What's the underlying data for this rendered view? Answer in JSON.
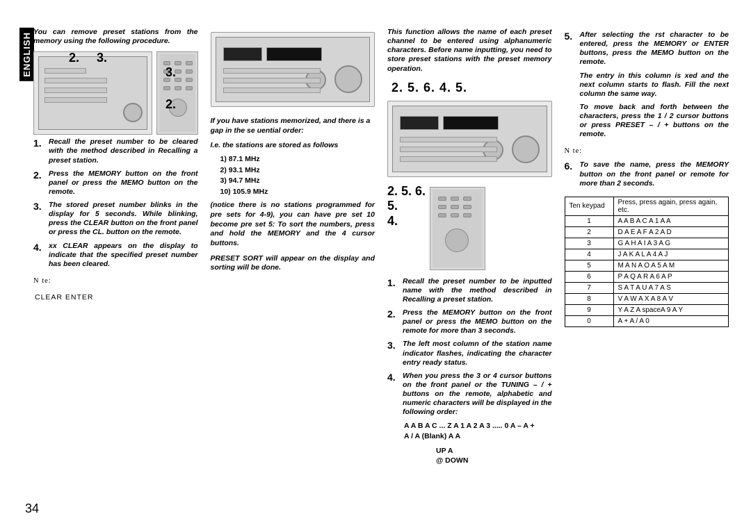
{
  "language_tab": "ENGLISH",
  "page_number": "34",
  "col1": {
    "intro": "You can remove preset stations from the memory using the following procedure.",
    "callouts_receiver": [
      "2.",
      "3."
    ],
    "callouts_remote": [
      "3.",
      "2."
    ],
    "steps": [
      {
        "n": "1.",
        "t": "Recall the preset number to be cleared with the method described in Recalling a preset station."
      },
      {
        "n": "2.",
        "t": "Press the MEMORY button on the front panel or press the MEMO button on the remote."
      },
      {
        "n": "3.",
        "t": "The stored preset number blinks in the display for 5 seconds. While blinking, press the CLEAR button on the front panel or press the CL. button on the remote."
      },
      {
        "n": "4.",
        "t": "xx CLEAR  appears on the display to indicate that the specified preset number has been cleared."
      }
    ],
    "note_label": "N  te:",
    "note_body": "CLEAR          ENTER"
  },
  "col2": {
    "intro": "If you have stations memorized, and there is a gap in the se uential order:",
    "sub1": "I.e. the stations are stored as follows",
    "freqs": [
      "1)   87.1 MHz",
      "2)   93.1 MHz",
      "3)   94.7 MHz",
      "10)   105.9 MHz"
    ],
    "body1": "(notice there is no stations programmed for pre sets for 4-9), you can have pre set 10 become pre set 5: To sort the numbers, press and hold the MEMORY and the 4  cursor buttons.",
    "body2": "PRESET SORT  will appear on the display and sorting will be done."
  },
  "col3": {
    "intro": "This function allows the name of each preset channel to be entered using alphanumeric characters. Before name inputting, you need to store preset stations with the preset memory operation.",
    "callouts_top": "2. 5. 6.      4.           5.",
    "callouts_side": [
      "2. 5. 6.",
      "5.",
      "4."
    ],
    "steps": [
      {
        "n": "1.",
        "t": "Recall the preset number to be inputted name with the method described in Recalling a preset station."
      },
      {
        "n": "2.",
        "t": "Press the MEMORY button on the front panel or press the MEMO button on the remote for more than 3 seconds."
      },
      {
        "n": "3.",
        "t": "The left most column of the station name indicator flashes, indicating the character entry ready status."
      },
      {
        "n": "4.",
        "t": "When you press the 3  or 4  cursor buttons on the front panel or the TUNING – / + buttons on the remote, alphabetic and numeric characters will be displayed in the following order:"
      }
    ],
    "char_line1": "A  A B  A C ... Z  A 1  A 2  A 3 ..... 0  A –  A +",
    "char_line2": "A /  A (Blank)  A A",
    "char_line3": "UP  A",
    "char_line4": "@ DOWN"
  },
  "col4": {
    "steps": [
      {
        "n": "5.",
        "t": "After selecting the   rst character to be entered, press the MEMORY or ENTER buttons, press the MEMO button on the remote.",
        "extra": [
          "The entry in this column is   xed and the next column starts to flash. Fill the next column the same way.",
          "To move back and forth between the characters, press the 1 / 2  cursor buttons or press PRESET – / + buttons on the remote."
        ]
      }
    ],
    "note_label": "N  te:",
    "step6": {
      "n": "6.",
      "t": "To save the name, press the MEMORY button on the front panel or remote for more than 2 seconds."
    },
    "table": {
      "headers": [
        "Ten keypad",
        "Press, press again, press again, etc."
      ],
      "rows": [
        [
          "1",
          "A A B A C A 1 A A"
        ],
        [
          "2",
          "D A E A F A 2 A D"
        ],
        [
          "3",
          "G A H A I A 3 A G"
        ],
        [
          "4",
          "J A K A L A 4 A J"
        ],
        [
          "5",
          "M A N A O A 5 A M"
        ],
        [
          "6",
          "P A Q A R A 6 A P"
        ],
        [
          "7",
          "S A T A U A 7 A S"
        ],
        [
          "8",
          "V A W A X A 8 A V"
        ],
        [
          "9",
          "Y A Z A spaceA 9 A Y"
        ],
        [
          "0",
          "A + A / A 0"
        ]
      ]
    }
  }
}
